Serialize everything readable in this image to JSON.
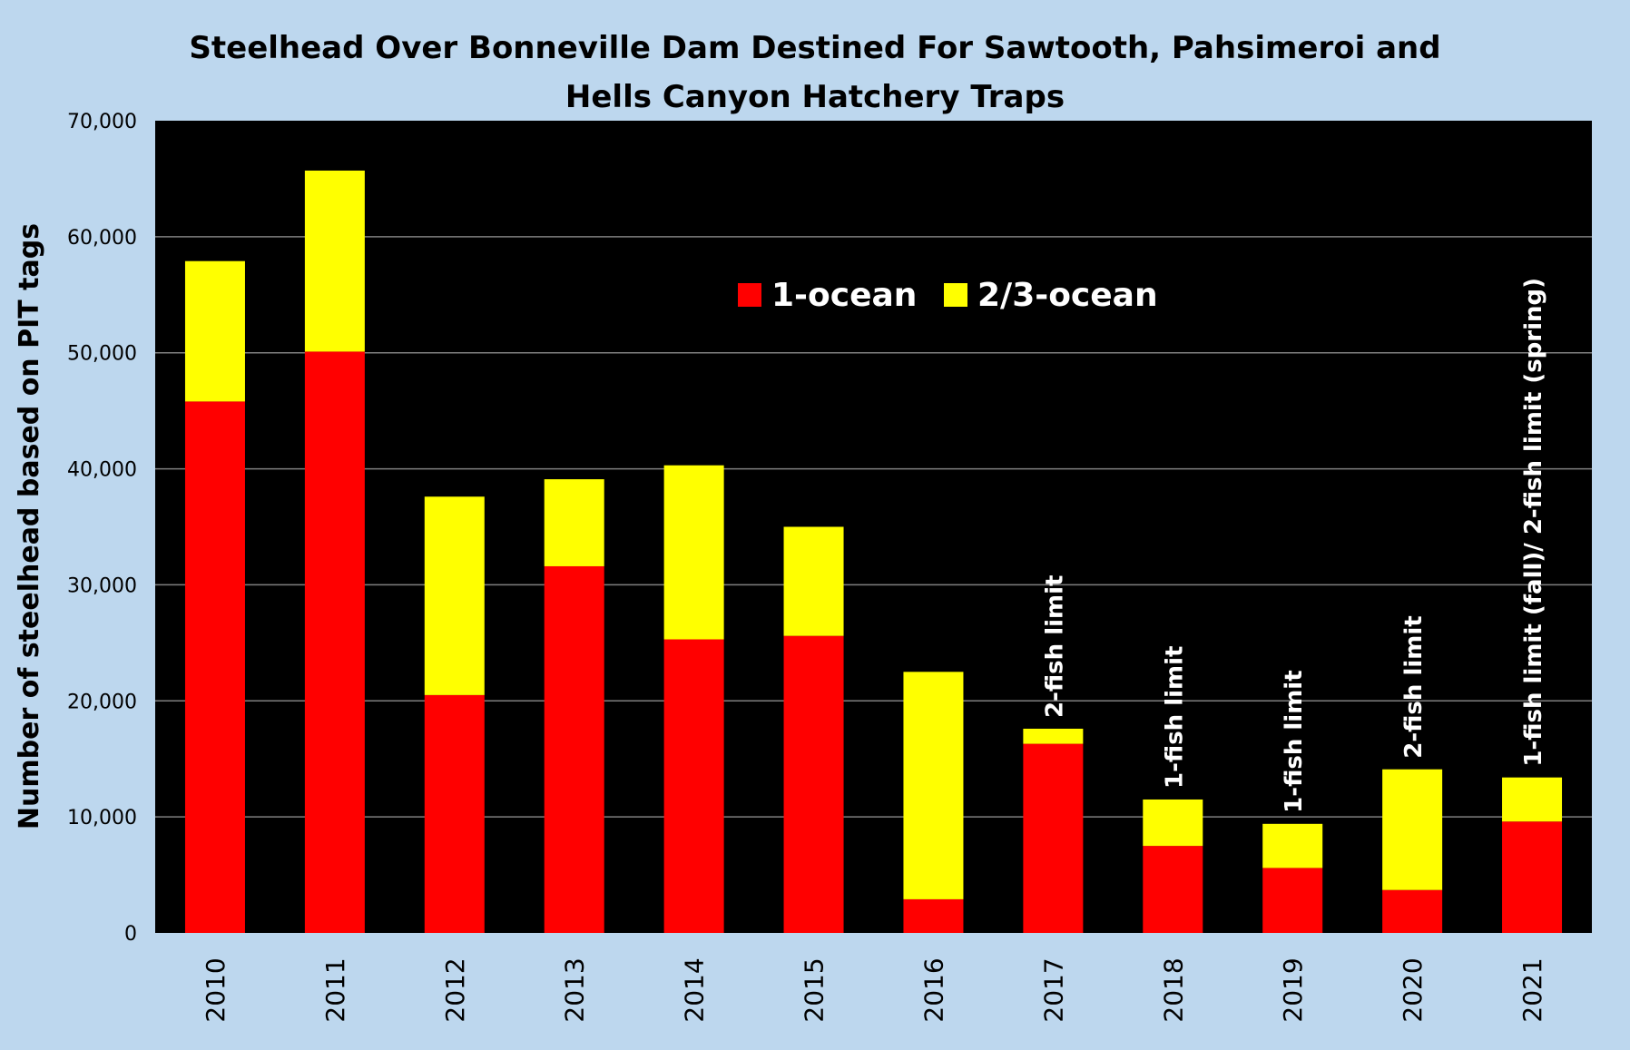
{
  "chart_data": {
    "type": "bar",
    "stacked": true,
    "title_lines": [
      "Steelhead Over Bonneville Dam Destined For Sawtooth, Pahsimeroi and",
      "Hells Canyon Hatchery Traps"
    ],
    "xlabel": "",
    "ylabel": "Number of steelhead based on PIT tags",
    "ylim": [
      0,
      70000
    ],
    "yticks": [
      0,
      10000,
      20000,
      30000,
      40000,
      50000,
      60000,
      70000
    ],
    "ytick_labels": [
      "0",
      "10,000",
      "20,000",
      "30,000",
      "40,000",
      "50,000",
      "60,000",
      "70,000"
    ],
    "grid": "horizontal",
    "legend_position": "top-center",
    "plot_background": "#000000",
    "categories": [
      "2010",
      "2011",
      "2012",
      "2013",
      "2014",
      "2015",
      "2016",
      "2017",
      "2018",
      "2019",
      "2020",
      "2021"
    ],
    "series": [
      {
        "name": "1-ocean",
        "color": "#ff0000",
        "values": [
          45800,
          50100,
          20500,
          31600,
          25300,
          25600,
          2900,
          16300,
          7500,
          5600,
          3700,
          9600
        ]
      },
      {
        "name": "2/3-ocean",
        "color": "#ffff00",
        "values": [
          12100,
          15600,
          17100,
          7500,
          15000,
          9400,
          19600,
          1300,
          4000,
          3800,
          10400,
          3800
        ]
      }
    ],
    "annotations": [
      {
        "category": "2017",
        "text": "2-fish limit"
      },
      {
        "category": "2018",
        "text": "1-fish limit"
      },
      {
        "category": "2019",
        "text": "1-fish limit"
      },
      {
        "category": "2020",
        "text": "2-fish limit"
      },
      {
        "category": "2021",
        "text": "1-fish limit (fall)/ 2-fish limit (spring)"
      }
    ]
  }
}
